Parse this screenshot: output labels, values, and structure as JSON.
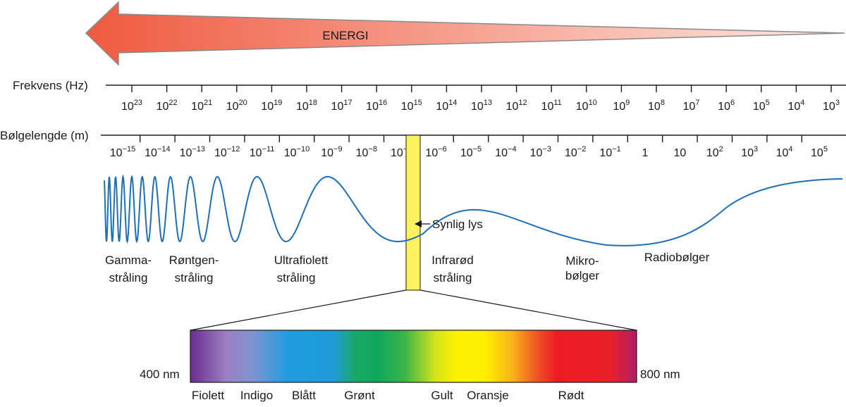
{
  "energy": {
    "label": "ENERGI",
    "colors": {
      "start": "#ef5a40",
      "end": "#fde9e2",
      "outline": "#8a8a8a"
    }
  },
  "frequency_scale": {
    "label": "Frekvens (Hz)",
    "exponents": [
      "23",
      "22",
      "21",
      "20",
      "19",
      "18",
      "17",
      "16",
      "15",
      "14",
      "13",
      "12",
      "11",
      "10",
      "9",
      "8",
      "7",
      "6",
      "5",
      "4",
      "3"
    ]
  },
  "wavelength_scale": {
    "label": "Bølgelengde (m)",
    "ticks": [
      {
        "base": "10",
        "exp": "−15"
      },
      {
        "base": "10",
        "exp": "−14"
      },
      {
        "base": "10",
        "exp": "−13"
      },
      {
        "base": "10",
        "exp": "−12"
      },
      {
        "base": "10",
        "exp": "−11"
      },
      {
        "base": "10",
        "exp": "−10"
      },
      {
        "base": "10",
        "exp": "−9"
      },
      {
        "base": "10",
        "exp": "−8"
      },
      {
        "base": "10",
        "exp": "−7"
      },
      {
        "base": "10",
        "exp": "−6"
      },
      {
        "base": "10",
        "exp": "−5"
      },
      {
        "base": "10",
        "exp": "−4"
      },
      {
        "base": "10",
        "exp": "−3"
      },
      {
        "base": "10",
        "exp": "−2"
      },
      {
        "base": "10",
        "exp": "−1"
      },
      {
        "base": "1",
        "exp": ""
      },
      {
        "base": "10",
        "exp": ""
      },
      {
        "base": "10",
        "exp": "2"
      },
      {
        "base": "10",
        "exp": "3"
      },
      {
        "base": "10",
        "exp": "4"
      },
      {
        "base": "10",
        "exp": "5"
      }
    ]
  },
  "wave_color": "#1f6fb8",
  "visible_band": {
    "label": "Synlig lys",
    "color": "#fbf25e"
  },
  "regions": [
    {
      "line1": "Gamma-",
      "line2": "stråling"
    },
    {
      "line1": "Røntgen-",
      "line2": "stråling"
    },
    {
      "line1": "Ultrafiolett",
      "line2": "stråling"
    },
    {
      "line1": "Infrarød",
      "line2": "stråling"
    },
    {
      "line1": "Mikro-",
      "line2": "bølger"
    },
    {
      "line1": "Radiobølger",
      "line2": ""
    }
  ],
  "spectrum": {
    "min_label": "400 nm",
    "max_label": "800 nm",
    "colors": [
      "Fiolett",
      "Indigo",
      "Blått",
      "Grønt",
      "Gult",
      "Oransje",
      "Rødt"
    ]
  }
}
